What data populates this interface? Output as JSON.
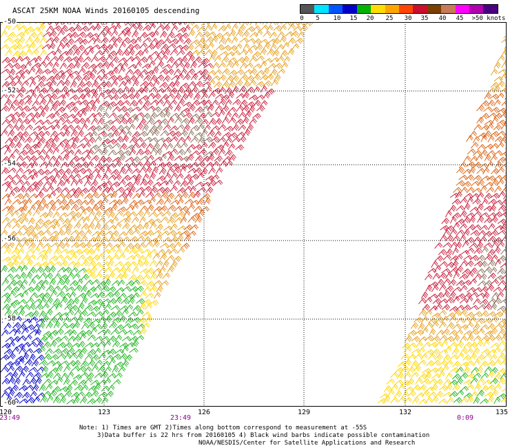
{
  "header": {
    "title": "ASCAT 25KM NOAA Winds 20160105 descending"
  },
  "speed_scale": {
    "ticks": [
      "0",
      "5",
      "10",
      "15",
      "20",
      "25",
      "30",
      "35",
      "40",
      "45",
      ">50 knots"
    ],
    "colors": [
      "#555555",
      "#00e5ff",
      "#0055ff",
      "#0000c8",
      "#00b400",
      "#ffdd00",
      "#ffa500",
      "#ff4500",
      "#c8102e",
      "#7b3f00",
      "#c87b5a",
      "#ff00ff",
      "#b000b0",
      "#4b0082"
    ]
  },
  "map": {
    "latitude_labels": [
      "-50",
      "-52",
      "-54",
      "-56",
      "-58",
      "-60"
    ],
    "longitude_labels": [
      "120",
      "123",
      "126",
      "129",
      "132",
      "135"
    ],
    "time_labels": [
      "23:49",
      "23:49",
      "0:09"
    ],
    "barb_colors": {
      "calm": "#0000c8",
      "light": "#22b422",
      "moderate": "#ffd700",
      "fresh": "#e6a020",
      "strong": "#dc6414",
      "gale": "#c81e3c",
      "storm": "#8b6f5a"
    }
  },
  "notes": {
    "line1": "Note: 1) Times are GMT 2)Times along bottom correspond to measurement at -55S",
    "line2": "3)Data buffer is 22 hrs from 20160105 4) Black wind barbs indicate possible contamination",
    "line3": "NOAA/NESDIS/Center for Satellite Applications and Research"
  }
}
